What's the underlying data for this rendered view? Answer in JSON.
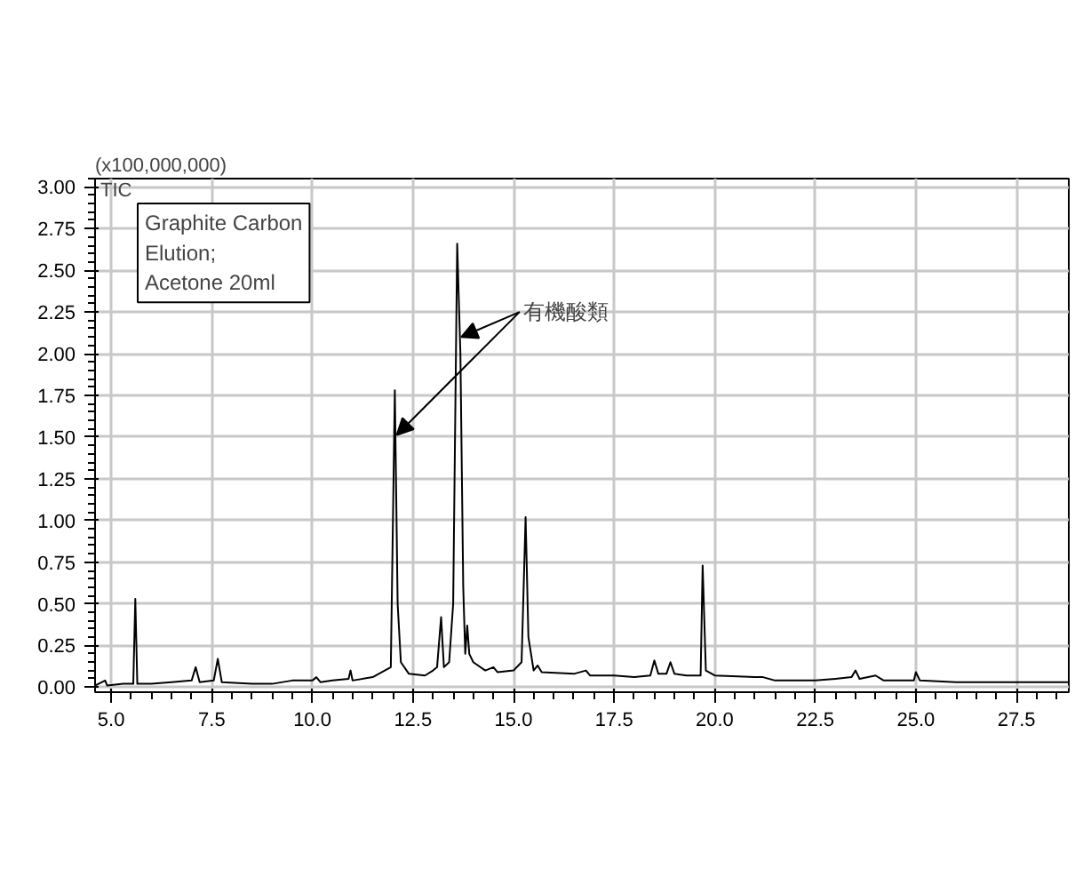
{
  "chart_data": {
    "type": "line",
    "ylabel": "(x100,000,000)",
    "x": [
      4.6,
      4.85,
      4.9,
      5.3,
      5.55,
      5.6,
      5.65,
      6.0,
      6.5,
      7.0,
      7.1,
      7.2,
      7.55,
      7.65,
      7.75,
      8.5,
      9.0,
      9.5,
      10.0,
      10.1,
      10.2,
      10.5,
      10.9,
      10.95,
      11.0,
      11.5,
      11.8,
      11.95,
      12.05,
      12.12,
      12.2,
      12.4,
      12.8,
      13.0,
      13.1,
      13.2,
      13.27,
      13.4,
      13.5,
      13.6,
      13.68,
      13.75,
      13.8,
      13.85,
      13.9,
      14.0,
      14.3,
      14.5,
      14.6,
      15.0,
      15.2,
      15.3,
      15.37,
      15.5,
      15.6,
      15.7,
      16.5,
      16.8,
      16.9,
      17.5,
      18.0,
      18.4,
      18.5,
      18.6,
      18.8,
      18.9,
      19.0,
      19.3,
      19.65,
      19.7,
      19.78,
      20.0,
      21.0,
      21.2,
      21.5,
      22.5,
      23.0,
      23.4,
      23.5,
      23.6,
      24.0,
      24.2,
      24.95,
      25.0,
      25.1,
      26.0,
      28.8
    ],
    "series": [
      {
        "color": "#000000",
        "values": [
          0.01,
          0.04,
          0.01,
          0.02,
          0.02,
          0.53,
          0.02,
          0.02,
          0.03,
          0.04,
          0.12,
          0.03,
          0.04,
          0.17,
          0.03,
          0.02,
          0.02,
          0.04,
          0.04,
          0.06,
          0.03,
          0.04,
          0.05,
          0.1,
          0.04,
          0.06,
          0.1,
          0.12,
          1.78,
          0.5,
          0.15,
          0.08,
          0.07,
          0.1,
          0.12,
          0.42,
          0.12,
          0.15,
          0.5,
          2.66,
          2.0,
          0.6,
          0.2,
          0.37,
          0.2,
          0.15,
          0.1,
          0.12,
          0.09,
          0.1,
          0.15,
          1.02,
          0.3,
          0.1,
          0.13,
          0.09,
          0.08,
          0.1,
          0.07,
          0.07,
          0.06,
          0.07,
          0.16,
          0.08,
          0.08,
          0.15,
          0.08,
          0.07,
          0.07,
          0.73,
          0.1,
          0.07,
          0.06,
          0.06,
          0.04,
          0.04,
          0.05,
          0.06,
          0.1,
          0.05,
          0.07,
          0.04,
          0.04,
          0.09,
          0.04,
          0.03,
          0.03
        ]
      }
    ],
    "xlim": [
      4.6,
      28.8
    ],
    "ylim": [
      -0.03,
      3.05
    ],
    "xticks": [
      {
        "value": 5,
        "label": "5.0"
      },
      {
        "value": 7.5,
        "label": "7.5"
      },
      {
        "value": 10,
        "label": "10.0"
      },
      {
        "value": 12.5,
        "label": "12.5"
      },
      {
        "value": 15,
        "label": "15.0"
      },
      {
        "value": 17.5,
        "label": "17.5"
      },
      {
        "value": 20,
        "label": "20.0"
      },
      {
        "value": 22.5,
        "label": "22.5"
      },
      {
        "value": 25,
        "label": "25.0"
      },
      {
        "value": 27.5,
        "label": "27.5"
      }
    ],
    "yticks": [
      {
        "value": 0,
        "label": "0.00"
      },
      {
        "value": 0.25,
        "label": "0.25"
      },
      {
        "value": 0.5,
        "label": "0.50"
      },
      {
        "value": 0.75,
        "label": "0.75"
      },
      {
        "value": 1,
        "label": "1.00"
      },
      {
        "value": 1.25,
        "label": "1.25"
      },
      {
        "value": 1.5,
        "label": "1.50"
      },
      {
        "value": 1.75,
        "label": "1.75"
      },
      {
        "value": 2,
        "label": "2.00"
      },
      {
        "value": 2.25,
        "label": "2.25"
      },
      {
        "value": 2.5,
        "label": "2.50"
      },
      {
        "value": 2.75,
        "label": "2.75"
      },
      {
        "value": 3,
        "label": "3.00"
      }
    ],
    "grid": true,
    "annotations": [
      "TIC",
      "Graphite Carbon\nElution;\nAcetone 20ml",
      {
        "text": "有機酸類",
        "x": 13.7,
        "y": 2.1
      }
    ]
  }
}
